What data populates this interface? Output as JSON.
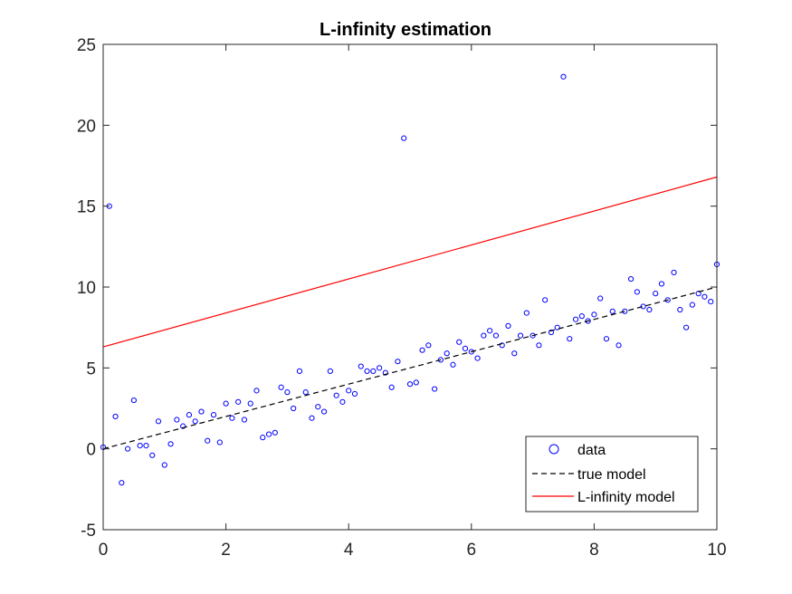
{
  "chart_data": {
    "type": "scatter",
    "title": "L-infinity estimation",
    "xlabel": "",
    "ylabel": "",
    "xlim": [
      0,
      10
    ],
    "ylim": [
      -5,
      25
    ],
    "x_ticks": [
      0,
      2,
      4,
      6,
      8,
      10
    ],
    "y_ticks": [
      -5,
      0,
      5,
      10,
      15,
      20,
      25
    ],
    "grid": false,
    "legend_position": "bottom-right",
    "series": [
      {
        "name": "data",
        "kind": "markers",
        "color": "#0000ff",
        "x": [
          0,
          0.1,
          0.2,
          0.3,
          0.4,
          0.5,
          0.6,
          0.7,
          0.8,
          0.9,
          1.0,
          1.1,
          1.2,
          1.3,
          1.4,
          1.5,
          1.6,
          1.7,
          1.8,
          1.9,
          2.0,
          2.1,
          2.2,
          2.3,
          2.4,
          2.5,
          2.6,
          2.7,
          2.8,
          2.9,
          3.0,
          3.1,
          3.2,
          3.3,
          3.4,
          3.5,
          3.6,
          3.7,
          3.8,
          3.9,
          4.0,
          4.1,
          4.2,
          4.3,
          4.4,
          4.5,
          4.6,
          4.7,
          4.8,
          4.9,
          5.0,
          5.1,
          5.2,
          5.3,
          5.4,
          5.5,
          5.6,
          5.7,
          5.8,
          5.9,
          6.0,
          6.1,
          6.2,
          6.3,
          6.4,
          6.5,
          6.6,
          6.7,
          6.8,
          6.9,
          7.0,
          7.1,
          7.2,
          7.3,
          7.4,
          7.5,
          7.6,
          7.7,
          7.8,
          7.9,
          8.0,
          8.1,
          8.2,
          8.3,
          8.4,
          8.5,
          8.6,
          8.7,
          8.8,
          8.9,
          9.0,
          9.1,
          9.2,
          9.3,
          9.4,
          9.5,
          9.6,
          9.7,
          9.8,
          9.9,
          10.0
        ],
        "y": [
          0.1,
          15.0,
          2.0,
          -2.1,
          0.0,
          3.0,
          0.2,
          0.2,
          -0.4,
          1.7,
          -1.0,
          0.3,
          1.8,
          1.4,
          2.1,
          1.7,
          2.3,
          0.5,
          2.1,
          0.4,
          2.8,
          1.9,
          2.9,
          1.8,
          2.8,
          3.6,
          0.7,
          0.9,
          1.0,
          3.8,
          3.5,
          2.5,
          4.8,
          3.5,
          1.9,
          2.6,
          2.3,
          4.8,
          3.3,
          2.9,
          3.6,
          3.4,
          5.1,
          4.8,
          4.8,
          5.0,
          4.7,
          3.8,
          5.4,
          19.2,
          4.0,
          4.1,
          6.1,
          6.4,
          3.7,
          5.5,
          5.9,
          5.2,
          6.6,
          6.2,
          6.0,
          5.6,
          7.0,
          7.3,
          7.0,
          6.4,
          7.6,
          5.9,
          7.0,
          8.4,
          7.0,
          6.4,
          9.2,
          7.2,
          7.5,
          23.0,
          6.8,
          8.0,
          8.2,
          7.9,
          8.3,
          9.3,
          6.8,
          8.5,
          6.4,
          8.5,
          10.5,
          9.7,
          8.8,
          8.6,
          9.6,
          10.2,
          9.2,
          10.9,
          8.6,
          7.5,
          8.9,
          9.6,
          9.4,
          9.1,
          11.4
        ]
      },
      {
        "name": "true model",
        "kind": "dashed-line",
        "color": "#000000",
        "x": [
          0,
          10
        ],
        "y": [
          0,
          10
        ]
      },
      {
        "name": "L-infinity model",
        "kind": "line",
        "color": "#ff0000",
        "x": [
          0,
          10
        ],
        "y": [
          6.3,
          16.8
        ]
      }
    ]
  }
}
